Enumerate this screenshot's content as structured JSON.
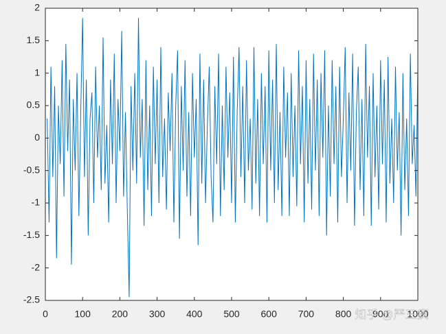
{
  "chart_data": {
    "type": "line",
    "x": [
      5,
      10,
      15,
      20,
      25,
      30,
      35,
      40,
      45,
      50,
      55,
      60,
      65,
      70,
      75,
      80,
      85,
      90,
      95,
      100,
      105,
      110,
      115,
      120,
      125,
      130,
      135,
      140,
      145,
      150,
      155,
      160,
      165,
      170,
      175,
      180,
      185,
      190,
      195,
      200,
      205,
      210,
      215,
      220,
      225,
      230,
      235,
      240,
      245,
      250,
      255,
      260,
      265,
      270,
      275,
      280,
      285,
      290,
      295,
      300,
      305,
      310,
      315,
      320,
      325,
      330,
      335,
      340,
      345,
      350,
      355,
      360,
      365,
      370,
      375,
      380,
      385,
      390,
      395,
      400,
      405,
      410,
      415,
      420,
      425,
      430,
      435,
      440,
      445,
      450,
      455,
      460,
      465,
      470,
      475,
      480,
      485,
      490,
      495,
      500,
      505,
      510,
      515,
      520,
      525,
      530,
      535,
      540,
      545,
      550,
      555,
      560,
      565,
      570,
      575,
      580,
      585,
      590,
      595,
      600,
      605,
      610,
      615,
      620,
      625,
      630,
      635,
      640,
      645,
      650,
      655,
      660,
      665,
      670,
      675,
      680,
      685,
      690,
      695,
      700,
      705,
      710,
      715,
      720,
      725,
      730,
      735,
      740,
      745,
      750,
      755,
      760,
      765,
      770,
      775,
      780,
      785,
      790,
      795,
      800,
      805,
      810,
      815,
      820,
      825,
      830,
      835,
      840,
      845,
      850,
      855,
      860,
      865,
      870,
      875,
      880,
      885,
      890,
      895,
      900,
      905,
      910,
      915,
      920,
      925,
      930,
      935,
      940,
      945,
      950,
      955,
      960,
      965,
      970,
      975,
      980,
      985,
      990,
      995,
      1000
    ],
    "series": [
      {
        "color": "#0072bd",
        "values": [
          0.3,
          -1.3,
          1.1,
          -0.6,
          0.8,
          -1.85,
          0.5,
          -0.4,
          1.2,
          -0.9,
          1.45,
          -0.2,
          0.9,
          -1.95,
          0.6,
          -0.5,
          1.0,
          -1.2,
          0.4,
          1.85,
          -0.6,
          0.9,
          -1.5,
          0.3,
          0.7,
          -1.0,
          1.1,
          -0.3,
          0.5,
          -0.8,
          1.55,
          -0.7,
          0.2,
          -1.3,
          0.9,
          -0.4,
          1.3,
          -1.0,
          0.6,
          -0.2,
          1.65,
          -0.9,
          0.4,
          -1.1,
          -2.45,
          0.8,
          -0.5,
          1.0,
          -0.7,
          1.85,
          -0.3,
          0.6,
          -1.35,
          1.2,
          -0.8,
          0.5,
          -1.2,
          1.1,
          -0.4,
          0.9,
          -1.0,
          1.4,
          -0.6,
          0.3,
          -1.1,
          0.7,
          -0.2,
          1.0,
          -1.3,
          0.5,
          1.35,
          -1.55,
          0.8,
          -0.5,
          1.2,
          -0.9,
          0.4,
          -1.2,
          1.0,
          -0.3,
          0.6,
          -1.65,
          1.3,
          -0.7,
          0.9,
          -1.0,
          0.2,
          1.1,
          -0.6,
          -1.3,
          0.8,
          -0.4,
          1.3,
          -1.2,
          0.5,
          -0.8,
          1.1,
          -0.3,
          0.7,
          -1.0,
          1.25,
          -1.3,
          0.4,
          1.4,
          -0.6,
          0.8,
          -1.0,
          1.2,
          -0.5,
          0.3,
          -1.1,
          1.4,
          -0.7,
          0.6,
          -1.2,
          1.0,
          -0.4,
          0.8,
          -1.3,
          1.35,
          -0.5,
          0.9,
          -1.0,
          1.45,
          -0.8,
          0.4,
          -1.2,
          1.1,
          -0.3,
          0.7,
          -1.2,
          1.0,
          -0.6,
          0.5,
          -1.05,
          1.35,
          -0.4,
          0.8,
          -1.3,
          1.2,
          -0.7,
          0.6,
          -1.1,
          1.3,
          -0.5,
          0.9,
          -1.2,
          1.0,
          -0.3,
          1.35,
          -1.5,
          0.5,
          -0.9,
          1.2,
          -0.4,
          0.8,
          -1.3,
          1.1,
          -0.6,
          0.3,
          1.4,
          -1.0,
          0.7,
          -0.5,
          1.3,
          -1.35,
          0.4,
          1.1,
          -0.8,
          0.6,
          -1.2,
          1.45,
          -0.3,
          0.8,
          -1.35,
          1.0,
          -0.6,
          0.5,
          -1.1,
          1.2,
          -0.4,
          0.9,
          -1.3,
          1.25,
          -0.7,
          0.3,
          -1.0,
          1.1,
          -0.5,
          0.4,
          -1.5,
          1.0,
          -0.8,
          0.3,
          -1.2,
          1.3,
          -0.4,
          0.2,
          -0.9,
          1.1
        ]
      }
    ],
    "xlim": [
      0,
      1000
    ],
    "ylim": [
      -2.5,
      2
    ],
    "xticks": [
      0,
      100,
      200,
      300,
      400,
      500,
      600,
      700,
      800,
      900,
      1000
    ],
    "yticks": [
      -2.5,
      -2,
      -1.5,
      -1,
      -0.5,
      0,
      0.5,
      1,
      1.5,
      2
    ],
    "grid": false,
    "annotation": "知乎 @严三疯"
  }
}
